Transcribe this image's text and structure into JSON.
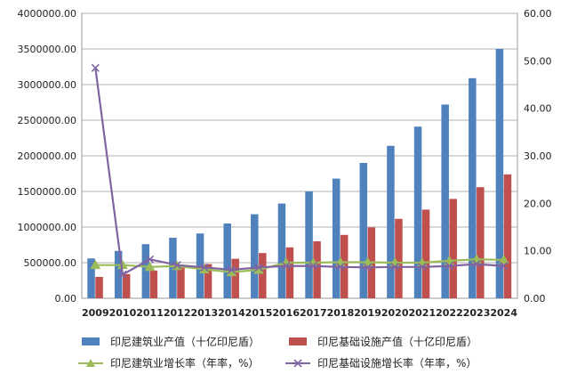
{
  "chart_data": {
    "type": "bar",
    "categories": [
      "2009",
      "2010",
      "2011",
      "2012",
      "2013",
      "2014",
      "2015",
      "2016",
      "2017",
      "2018",
      "2019",
      "2020",
      "2021",
      "2022",
      "2023",
      "2024"
    ],
    "y_left_ticks": [
      "0.00",
      "500000.00",
      "1000000.00",
      "1500000.00",
      "2000000.00",
      "2500000.00",
      "3000000.00",
      "3500000.00",
      "4000000.00"
    ],
    "y_right_ticks": [
      "0.00",
      "10.00",
      "20.00",
      "30.00",
      "40.00",
      "50.00",
      "60.00"
    ],
    "ylim_left": [
      0,
      4000000
    ],
    "ylim_right": [
      0,
      60
    ],
    "grid": true,
    "legend_position": "bottom",
    "series": [
      {
        "name": "印尼建筑业产值（十亿印尼盾）",
        "kind": "bar",
        "axis": "left",
        "color": "#4f81bd",
        "values": [
          560000,
          665000,
          760000,
          850000,
          910000,
          1050000,
          1180000,
          1330000,
          1500000,
          1680000,
          1900000,
          2140000,
          2410000,
          2720000,
          3090000,
          3500000
        ]
      },
      {
        "name": "印尼基础设施产值（十亿印尼盾）",
        "kind": "bar",
        "axis": "left",
        "color": "#c0504d",
        "values": [
          300000,
          340000,
          390000,
          430000,
          480000,
          555000,
          635000,
          715000,
          800000,
          890000,
          995000,
          1115000,
          1245000,
          1395000,
          1560000,
          1740000
        ]
      },
      {
        "name": "印尼建筑业增长率（年率，%）",
        "kind": "line",
        "axis": "right",
        "color": "#9bbb59",
        "marker": "triangle",
        "values": [
          7.0,
          7.0,
          6.6,
          6.8,
          6.1,
          5.5,
          6.0,
          7.5,
          7.5,
          7.6,
          7.6,
          7.5,
          7.5,
          7.9,
          8.2,
          8.1
        ]
      },
      {
        "name": "印尼基础设施增长率（年率，%）",
        "kind": "line",
        "axis": "right",
        "color": "#8064a2",
        "marker": "x",
        "values": [
          48.5,
          5.0,
          8.2,
          7.0,
          6.5,
          6.0,
          6.5,
          6.8,
          6.8,
          6.6,
          6.5,
          6.6,
          6.6,
          6.8,
          7.2,
          6.8
        ]
      }
    ]
  }
}
